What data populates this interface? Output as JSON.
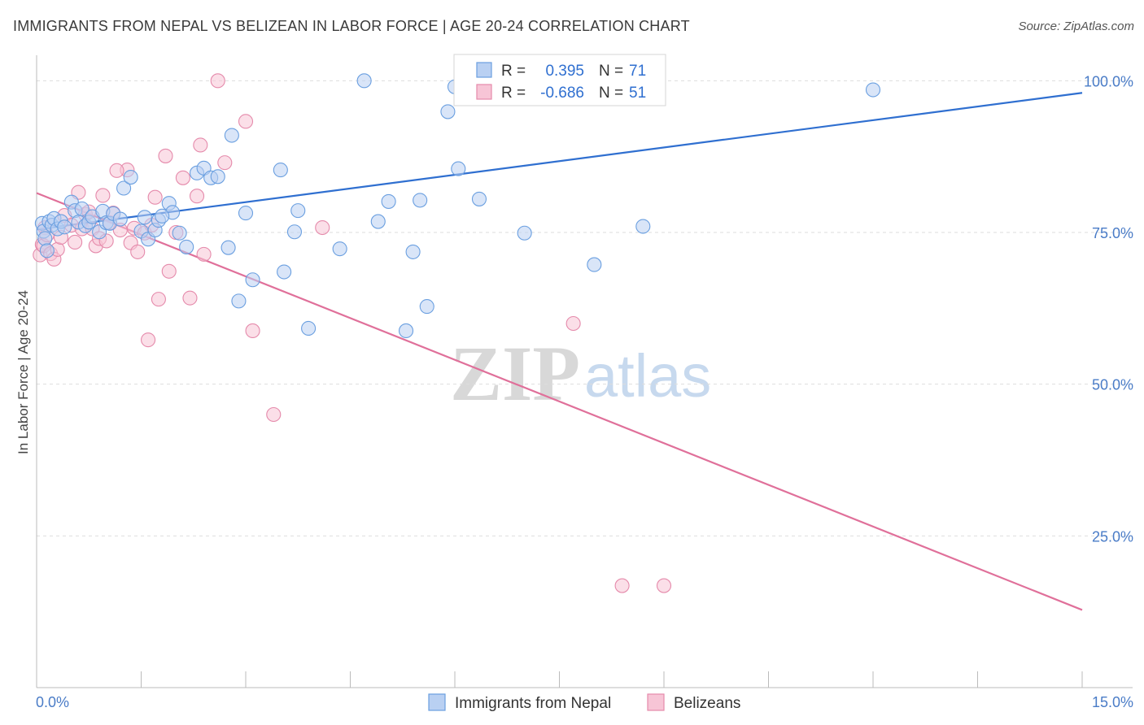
{
  "title": "IMMIGRANTS FROM NEPAL VS BELIZEAN IN LABOR FORCE | AGE 20-24 CORRELATION CHART",
  "source": "Source: ZipAtlas.com",
  "watermark": {
    "zip": "ZIP",
    "atlas": "atlas"
  },
  "colors": {
    "blue": "#6a9fe0",
    "blue_fill": "#b9d0f2",
    "blue_line": "#2f6fd0",
    "pink": "#e58aab",
    "pink_fill": "#f7c5d6",
    "pink_line": "#e0709a",
    "tick_text": "#4a7cc7",
    "grid": "#dddddd"
  },
  "legend": {
    "rows": [
      {
        "r_label": "R =",
        "r_value": "0.395",
        "n_label": "N =",
        "n_value": "71"
      },
      {
        "r_label": "R =",
        "r_value": "-0.686",
        "n_label": "N =",
        "n_value": "51"
      }
    ]
  },
  "bottom_legend": [
    "Immigrants from Nepal",
    "Belizeans"
  ],
  "chart_data": {
    "type": "scatter",
    "ylabel": "In Labor Force | Age 20-24",
    "xlim": [
      0,
      15
    ],
    "ylim": [
      0,
      105
    ],
    "x_tick_labels": [
      "0.0%",
      "15.0%"
    ],
    "y_ticks": [
      25,
      50,
      75,
      100
    ],
    "y_tick_labels": [
      "25.0%",
      "50.0%",
      "75.0%",
      "100.0%"
    ],
    "grid": "horizontal dashed",
    "series": [
      {
        "name": "Immigrants from Nepal",
        "color": "#6a9fe0",
        "points": [
          [
            0.08,
            76.5
          ],
          [
            0.1,
            75.2
          ],
          [
            0.12,
            74.0
          ],
          [
            0.15,
            72.0
          ],
          [
            0.18,
            76.8
          ],
          [
            0.22,
            76.2
          ],
          [
            0.25,
            77.3
          ],
          [
            0.3,
            75.6
          ],
          [
            0.35,
            76.8
          ],
          [
            0.4,
            75.9
          ],
          [
            0.5,
            80.0
          ],
          [
            0.55,
            78.6
          ],
          [
            0.6,
            76.7
          ],
          [
            0.65,
            78.9
          ],
          [
            0.7,
            76.1
          ],
          [
            0.75,
            76.7
          ],
          [
            0.8,
            77.6
          ],
          [
            0.9,
            75.1
          ],
          [
            0.95,
            78.5
          ],
          [
            1.0,
            76.6
          ],
          [
            1.05,
            76.5
          ],
          [
            1.1,
            78.1
          ],
          [
            1.2,
            77.2
          ],
          [
            1.25,
            82.3
          ],
          [
            1.35,
            84.1
          ],
          [
            1.5,
            75.2
          ],
          [
            1.55,
            77.5
          ],
          [
            1.6,
            73.9
          ],
          [
            1.7,
            75.4
          ],
          [
            1.75,
            77.0
          ],
          [
            1.9,
            79.8
          ],
          [
            1.95,
            78.3
          ],
          [
            2.05,
            74.9
          ],
          [
            2.15,
            72.6
          ],
          [
            2.3,
            84.8
          ],
          [
            2.4,
            85.6
          ],
          [
            2.5,
            84.0
          ],
          [
            2.6,
            84.2
          ],
          [
            2.75,
            72.5
          ],
          [
            2.8,
            91.0
          ],
          [
            2.9,
            63.7
          ],
          [
            3.0,
            78.2
          ],
          [
            3.1,
            67.2
          ],
          [
            3.5,
            85.3
          ],
          [
            3.55,
            68.5
          ],
          [
            3.7,
            75.1
          ],
          [
            3.75,
            78.6
          ],
          [
            3.9,
            59.2
          ],
          [
            4.35,
            72.3
          ],
          [
            4.7,
            100.0
          ],
          [
            4.9,
            76.8
          ],
          [
            5.05,
            80.1
          ],
          [
            5.3,
            58.8
          ],
          [
            5.4,
            71.8
          ],
          [
            5.5,
            80.3
          ],
          [
            5.6,
            62.8
          ],
          [
            5.9,
            94.9
          ],
          [
            6.0,
            99.0
          ],
          [
            6.05,
            85.5
          ],
          [
            6.35,
            80.5
          ],
          [
            6.55,
            98.6
          ],
          [
            6.75,
            99.2
          ],
          [
            7.0,
            74.9
          ],
          [
            7.05,
            99.6
          ],
          [
            7.3,
            100.3
          ],
          [
            7.8,
            100.0
          ],
          [
            8.0,
            69.7
          ],
          [
            8.2,
            100.0
          ],
          [
            8.7,
            76.0
          ],
          [
            12.0,
            98.5
          ],
          [
            1.8,
            77.7
          ]
        ]
      },
      {
        "name": "Belizeans",
        "color": "#e58aab",
        "points": [
          [
            0.05,
            71.3
          ],
          [
            0.08,
            73.0
          ],
          [
            0.1,
            72.8
          ],
          [
            0.12,
            75.8
          ],
          [
            0.15,
            74.6
          ],
          [
            0.2,
            71.5
          ],
          [
            0.25,
            70.6
          ],
          [
            0.3,
            72.2
          ],
          [
            0.35,
            74.2
          ],
          [
            0.4,
            77.8
          ],
          [
            0.5,
            76.2
          ],
          [
            0.55,
            73.4
          ],
          [
            0.6,
            81.6
          ],
          [
            0.65,
            75.6
          ],
          [
            0.7,
            78.0
          ],
          [
            0.75,
            78.4
          ],
          [
            0.8,
            75.6
          ],
          [
            0.85,
            72.8
          ],
          [
            0.9,
            74.0
          ],
          [
            0.95,
            81.1
          ],
          [
            1.0,
            73.6
          ],
          [
            1.05,
            76.6
          ],
          [
            1.1,
            78.2
          ],
          [
            1.2,
            75.4
          ],
          [
            1.3,
            85.3
          ],
          [
            1.35,
            73.3
          ],
          [
            1.4,
            75.7
          ],
          [
            1.45,
            71.8
          ],
          [
            1.55,
            74.9
          ],
          [
            1.6,
            57.3
          ],
          [
            1.65,
            76.2
          ],
          [
            1.7,
            80.8
          ],
          [
            1.75,
            64.0
          ],
          [
            1.85,
            87.6
          ],
          [
            1.9,
            68.6
          ],
          [
            2.0,
            75.0
          ],
          [
            2.1,
            84.0
          ],
          [
            2.2,
            64.2
          ],
          [
            2.3,
            81.0
          ],
          [
            2.35,
            89.4
          ],
          [
            2.4,
            71.4
          ],
          [
            2.6,
            100.0
          ],
          [
            2.7,
            86.5
          ],
          [
            3.0,
            93.3
          ],
          [
            3.1,
            58.8
          ],
          [
            3.4,
            45.0
          ],
          [
            4.1,
            75.8
          ],
          [
            7.7,
            60.0
          ],
          [
            8.4,
            16.8
          ],
          [
            9.0,
            16.8
          ],
          [
            1.15,
            85.2
          ]
        ]
      }
    ],
    "trendlines": [
      {
        "series": "Immigrants from Nepal",
        "x": [
          0,
          15
        ],
        "y": [
          75.5,
          98.0
        ]
      },
      {
        "series": "Belizeans",
        "x": [
          0,
          15
        ],
        "y": [
          81.5,
          12.8
        ]
      }
    ]
  }
}
